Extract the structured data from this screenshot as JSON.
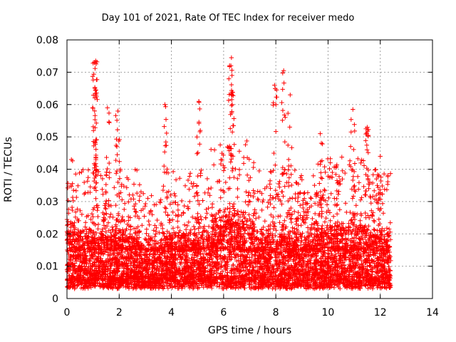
{
  "chart_data": {
    "type": "scatter",
    "title": "Day 101 of 2021, Rate Of TEC Index for receiver medo",
    "xlabel": "GPS time / hours",
    "ylabel": "ROTI / TECUs",
    "xlim": [
      0,
      14
    ],
    "ylim": [
      0,
      0.08
    ],
    "x_ticks": [
      "0",
      "2",
      "4",
      "6",
      "8",
      "10",
      "12",
      "14"
    ],
    "y_ticks": [
      "0",
      "0.01",
      "0.02",
      "0.03",
      "0.04",
      "0.05",
      "0.06",
      "0.07",
      "0.08"
    ],
    "grid": true,
    "marker": "+",
    "marker_color": "#ff0000",
    "data_x_range": [
      0,
      12.4
    ],
    "baseline_band": [
      0.004,
      0.02
    ],
    "peaks": [
      {
        "x": 1.05,
        "y": 0.073
      },
      {
        "x": 1.1,
        "y": 0.0735
      },
      {
        "x": 1.07,
        "y": 0.065
      },
      {
        "x": 1.55,
        "y": 0.059
      },
      {
        "x": 1.95,
        "y": 0.058
      },
      {
        "x": 3.75,
        "y": 0.06
      },
      {
        "x": 5.05,
        "y": 0.061
      },
      {
        "x": 6.3,
        "y": 0.0745
      },
      {
        "x": 6.28,
        "y": 0.072
      },
      {
        "x": 6.32,
        "y": 0.069
      },
      {
        "x": 7.95,
        "y": 0.066
      },
      {
        "x": 8.3,
        "y": 0.0705
      },
      {
        "x": 8.55,
        "y": 0.063
      },
      {
        "x": 9.7,
        "y": 0.051
      },
      {
        "x": 10.95,
        "y": 0.0585
      },
      {
        "x": 11.5,
        "y": 0.053
      },
      {
        "x": 12.0,
        "y": 0.044
      }
    ]
  }
}
